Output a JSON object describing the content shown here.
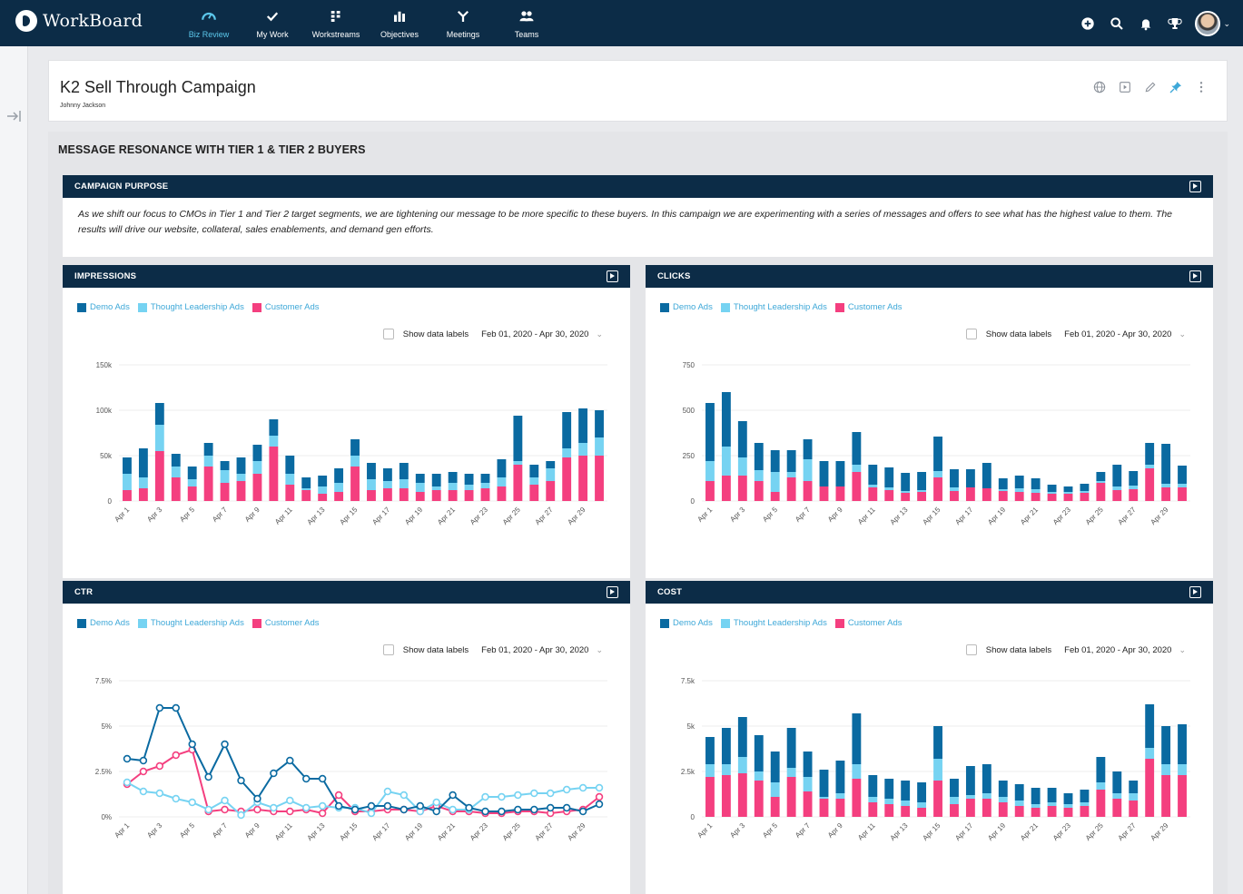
{
  "app": {
    "name": "WorkBoard"
  },
  "nav": [
    {
      "label": "Biz Review",
      "icon": "gauge-icon",
      "active": true
    },
    {
      "label": "My Work",
      "icon": "checkmark-icon",
      "active": false
    },
    {
      "label": "Workstreams",
      "icon": "workstreams-icon",
      "active": false
    },
    {
      "label": "Objectives",
      "icon": "bar-chart-icon",
      "active": false
    },
    {
      "label": "Meetings",
      "icon": "meetings-icon",
      "active": false
    },
    {
      "label": "Teams",
      "icon": "teams-icon",
      "active": false
    }
  ],
  "top_actions": [
    "plus-circle-icon",
    "search-icon",
    "bell-icon",
    "trophy-icon",
    "avatar"
  ],
  "page": {
    "title": "K2 Sell Through Campaign",
    "owner": "Johnny Jackson",
    "actions": [
      "globe-icon",
      "present-icon",
      "pencil-icon",
      "pin-icon",
      "more-vertical-icon"
    ]
  },
  "section": {
    "title": "MESSAGE RESONANCE WITH TIER 1 & TIER 2 BUYERS"
  },
  "purpose": {
    "title": "CAMPAIGN PURPOSE",
    "text": "As we shift our focus to CMOs in Tier 1 and Tier 2 target segments, we are tightening our message to be more specific to these buyers. In this campaign we are experimenting with a series of messages and offers to see what has the highest value to them. The results will drive our website, collateral, sales enablements, and demand gen efforts."
  },
  "colors": {
    "demo": "#0a6aa1",
    "thought": "#76d3f2",
    "customer": "#f43f7f",
    "nav_bg": "#0c2c47",
    "accent": "#5bc6ea"
  },
  "legend": [
    "Demo Ads",
    "Thought Leadership Ads",
    "Customer Ads"
  ],
  "controls": {
    "show_labels": "Show data labels",
    "date_range": "Feb 01, 2020 - Apr 30, 2020"
  },
  "x_tick_labels": [
    "Apr 1",
    "Apr 3",
    "Apr 5",
    "Apr 7",
    "Apr 9",
    "Apr 11",
    "Apr 13",
    "Apr 15",
    "Apr 17",
    "Apr 19",
    "Apr 21",
    "Apr 23",
    "Apr 25",
    "Apr 27",
    "Apr 29"
  ],
  "chart_data": [
    {
      "title": "IMPRESSIONS",
      "type": "bar",
      "stacked": true,
      "yticks": [
        "0",
        "50k",
        "100k",
        "150k"
      ],
      "ylim": [
        0,
        150
      ],
      "categories": [
        "Apr 1",
        "Apr 2",
        "Apr 3",
        "Apr 4",
        "Apr 5",
        "Apr 6",
        "Apr 7",
        "Apr 8",
        "Apr 9",
        "Apr 10",
        "Apr 11",
        "Apr 12",
        "Apr 13",
        "Apr 14",
        "Apr 15",
        "Apr 16",
        "Apr 17",
        "Apr 18",
        "Apr 19",
        "Apr 20",
        "Apr 21",
        "Apr 22",
        "Apr 23",
        "Apr 24",
        "Apr 25",
        "Apr 26",
        "Apr 27",
        "Apr 28",
        "Apr 29",
        "Apr 30"
      ],
      "series": [
        {
          "name": "Customer Ads",
          "values": [
            12,
            14,
            55,
            26,
            16,
            38,
            20,
            22,
            30,
            60,
            18,
            12,
            8,
            10,
            38,
            12,
            14,
            14,
            10,
            12,
            12,
            12,
            14,
            16,
            40,
            18,
            22,
            48,
            50,
            50
          ]
        },
        {
          "name": "Thought Leadership Ads",
          "values": [
            18,
            12,
            29,
            12,
            8,
            12,
            14,
            8,
            14,
            12,
            12,
            2,
            8,
            10,
            12,
            12,
            8,
            10,
            10,
            4,
            8,
            6,
            6,
            10,
            4,
            8,
            14,
            10,
            14,
            20
          ]
        },
        {
          "name": "Demo Ads",
          "values": [
            18,
            32,
            24,
            14,
            14,
            14,
            10,
            18,
            18,
            18,
            20,
            12,
            12,
            16,
            18,
            18,
            14,
            18,
            10,
            14,
            12,
            12,
            10,
            20,
            50,
            14,
            8,
            40,
            38,
            30
          ]
        }
      ]
    },
    {
      "title": "CLICKS",
      "type": "bar",
      "stacked": true,
      "yticks": [
        "0",
        "250",
        "500",
        "750"
      ],
      "ylim": [
        0,
        750
      ],
      "categories": [
        "Apr 1",
        "Apr 2",
        "Apr 3",
        "Apr 4",
        "Apr 5",
        "Apr 6",
        "Apr 7",
        "Apr 8",
        "Apr 9",
        "Apr 10",
        "Apr 11",
        "Apr 12",
        "Apr 13",
        "Apr 14",
        "Apr 15",
        "Apr 16",
        "Apr 17",
        "Apr 18",
        "Apr 19",
        "Apr 20",
        "Apr 21",
        "Apr 22",
        "Apr 23",
        "Apr 24",
        "Apr 25",
        "Apr 26",
        "Apr 27",
        "Apr 28",
        "Apr 29",
        "Apr 30"
      ],
      "series": [
        {
          "name": "Customer Ads",
          "values": [
            110,
            140,
            140,
            110,
            50,
            130,
            110,
            80,
            80,
            160,
            75,
            60,
            45,
            50,
            130,
            55,
            75,
            70,
            55,
            50,
            45,
            40,
            40,
            45,
            100,
            60,
            65,
            180,
            75,
            75
          ]
        },
        {
          "name": "Thought Leadership Ads",
          "values": [
            110,
            160,
            100,
            60,
            110,
            30,
            120,
            0,
            0,
            40,
            15,
            15,
            10,
            10,
            35,
            20,
            0,
            0,
            10,
            20,
            20,
            10,
            10,
            10,
            10,
            20,
            20,
            20,
            20,
            20
          ]
        },
        {
          "name": "Demo Ads",
          "values": [
            320,
            300,
            200,
            150,
            120,
            120,
            110,
            140,
            140,
            180,
            110,
            110,
            100,
            100,
            190,
            100,
            100,
            140,
            60,
            70,
            60,
            40,
            30,
            40,
            50,
            120,
            80,
            120,
            220,
            100
          ]
        }
      ]
    },
    {
      "title": "CTR",
      "type": "line",
      "yticks": [
        "0%",
        "2.5%",
        "5%",
        "7.5%"
      ],
      "ylim": [
        0,
        7.5
      ],
      "categories": [
        "Apr 1",
        "Apr 2",
        "Apr 3",
        "Apr 4",
        "Apr 5",
        "Apr 6",
        "Apr 7",
        "Apr 8",
        "Apr 9",
        "Apr 10",
        "Apr 11",
        "Apr 12",
        "Apr 13",
        "Apr 14",
        "Apr 15",
        "Apr 16",
        "Apr 17",
        "Apr 18",
        "Apr 19",
        "Apr 20",
        "Apr 21",
        "Apr 22",
        "Apr 23",
        "Apr 24",
        "Apr 25",
        "Apr 26",
        "Apr 27",
        "Apr 28",
        "Apr 29",
        "Apr 30"
      ],
      "series": [
        {
          "name": "Demo Ads",
          "values": [
            3.2,
            3.1,
            6.0,
            6.0,
            4.0,
            2.2,
            4.0,
            2.0,
            1.0,
            2.4,
            3.1,
            2.1,
            2.1,
            0.6,
            0.4,
            0.6,
            0.6,
            0.4,
            0.6,
            0.3,
            1.2,
            0.5,
            0.3,
            0.3,
            0.4,
            0.4,
            0.5,
            0.5,
            0.3,
            0.7
          ]
        },
        {
          "name": "Thought Leadership Ads",
          "values": [
            1.9,
            1.4,
            1.3,
            1.0,
            0.8,
            0.4,
            0.9,
            0.1,
            0.8,
            0.5,
            0.9,
            0.5,
            0.6,
            0.5,
            0.5,
            0.2,
            1.4,
            1.2,
            0.3,
            0.8,
            0.4,
            0.4,
            1.1,
            1.1,
            1.2,
            1.3,
            1.3,
            1.5,
            1.6,
            1.6
          ]
        },
        {
          "name": "Customer Ads",
          "values": [
            1.8,
            2.5,
            2.8,
            3.4,
            3.7,
            0.3,
            0.4,
            0.3,
            0.4,
            0.3,
            0.3,
            0.4,
            0.2,
            1.2,
            0.3,
            0.3,
            0.4,
            0.4,
            0.3,
            0.6,
            0.3,
            0.3,
            0.2,
            0.2,
            0.3,
            0.3,
            0.2,
            0.3,
            0.4,
            1.1
          ]
        }
      ]
    },
    {
      "title": "COST",
      "type": "bar",
      "stacked": true,
      "yticks": [
        "0",
        "2.5k",
        "5k",
        "7.5k"
      ],
      "ylim": [
        0,
        7.5
      ],
      "categories": [
        "Apr 1",
        "Apr 2",
        "Apr 3",
        "Apr 4",
        "Apr 5",
        "Apr 6",
        "Apr 7",
        "Apr 8",
        "Apr 9",
        "Apr 10",
        "Apr 11",
        "Apr 12",
        "Apr 13",
        "Apr 14",
        "Apr 15",
        "Apr 16",
        "Apr 17",
        "Apr 18",
        "Apr 19",
        "Apr 20",
        "Apr 21",
        "Apr 22",
        "Apr 23",
        "Apr 24",
        "Apr 25",
        "Apr 26",
        "Apr 27",
        "Apr 28",
        "Apr 29",
        "Apr 30"
      ],
      "series": [
        {
          "name": "Customer Ads",
          "values": [
            2.2,
            2.3,
            2.4,
            2.0,
            1.1,
            2.2,
            1.4,
            1.0,
            1.0,
            2.1,
            0.8,
            0.7,
            0.6,
            0.5,
            2.0,
            0.7,
            1.0,
            1.0,
            0.8,
            0.6,
            0.5,
            0.6,
            0.5,
            0.6,
            1.5,
            1.0,
            0.9,
            3.2,
            2.3,
            2.3
          ]
        },
        {
          "name": "Thought Leadership Ads",
          "values": [
            0.7,
            0.6,
            0.9,
            0.5,
            0.8,
            0.5,
            0.8,
            0.1,
            0.3,
            0.8,
            0.3,
            0.3,
            0.3,
            0.3,
            1.2,
            0.4,
            0.2,
            0.3,
            0.3,
            0.3,
            0.2,
            0.2,
            0.2,
            0.2,
            0.4,
            0.3,
            0.4,
            0.6,
            0.6,
            0.6
          ]
        },
        {
          "name": "Demo Ads",
          "values": [
            1.5,
            2.0,
            2.2,
            2.0,
            1.7,
            2.2,
            1.4,
            1.5,
            1.8,
            2.8,
            1.2,
            1.1,
            1.1,
            1.1,
            1.8,
            1.0,
            1.6,
            1.6,
            0.9,
            0.9,
            0.9,
            0.8,
            0.6,
            0.7,
            1.4,
            1.2,
            0.7,
            2.4,
            2.1,
            2.2
          ]
        }
      ]
    }
  ]
}
